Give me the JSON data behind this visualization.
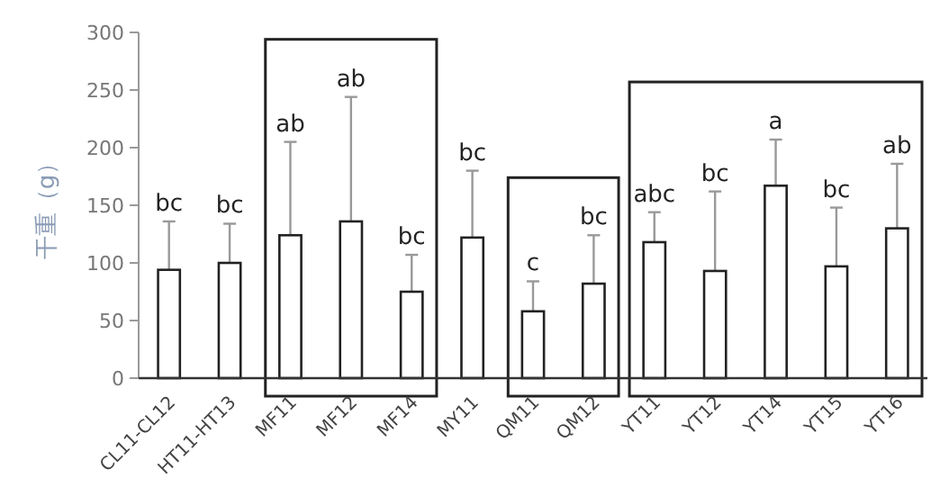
{
  "chart_data": {
    "type": "bar",
    "ylabel": "干重（g）",
    "categories": [
      "CL11-CL12",
      "HT11-HT13",
      "MF11",
      "MF12",
      "MF14",
      "MY11",
      "QM11",
      "QM12",
      "YT11",
      "YT12",
      "YT14",
      "YT15",
      "YT16"
    ],
    "values": [
      94,
      100,
      124,
      136,
      75,
      122,
      58,
      82,
      118,
      93,
      167,
      97,
      130
    ],
    "errors": [
      [
        94,
        136
      ],
      [
        100,
        134
      ],
      [
        124,
        205
      ],
      [
        136,
        244
      ],
      [
        75,
        107
      ],
      [
        122,
        180
      ],
      [
        58,
        84
      ],
      [
        82,
        124
      ],
      [
        118,
        144
      ],
      [
        93,
        162
      ],
      [
        167,
        207
      ],
      [
        97,
        148
      ],
      [
        130,
        186
      ]
    ],
    "color": "#ffffff",
    "ylim": [
      0,
      300
    ],
    "yticks": [
      0,
      50,
      100,
      150,
      200,
      250,
      300
    ],
    "grid": false,
    "annotations": [
      {
        "text": "bc",
        "x": "CL11-CL12",
        "y": 136
      },
      {
        "text": "bc",
        "x": "HT11-HT13",
        "y": 134
      },
      {
        "text": "ab",
        "x": "MF11",
        "y": 205
      },
      {
        "text": "ab",
        "x": "MF12",
        "y": 244
      },
      {
        "text": "bc",
        "x": "MF14",
        "y": 107
      },
      {
        "text": "bc",
        "x": "MY11",
        "y": 180
      },
      {
        "text": "c",
        "x": "QM11",
        "y": 84
      },
      {
        "text": "bc",
        "x": "QM12",
        "y": 124
      },
      {
        "text": "abc",
        "x": "YT11",
        "y": 144
      },
      {
        "text": "bc",
        "x": "YT12",
        "y": 162
      },
      {
        "text": "a",
        "x": "YT14",
        "y": 207
      },
      {
        "text": "bc",
        "x": "YT15",
        "y": 148
      },
      {
        "text": "ab",
        "x": "YT16",
        "y": 186
      }
    ]
  }
}
